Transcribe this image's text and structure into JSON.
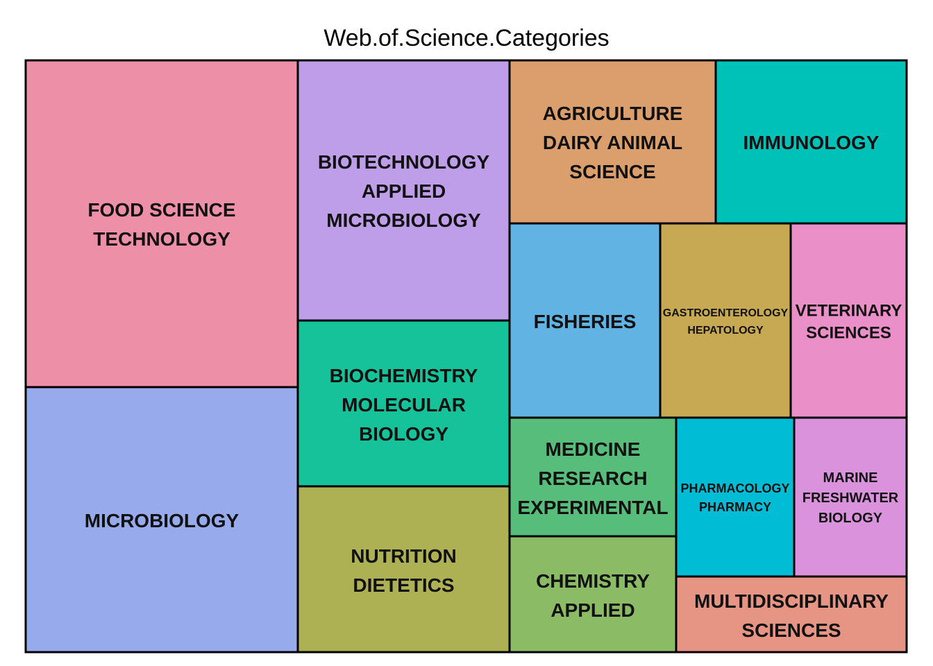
{
  "chart_data": {
    "type": "treemap",
    "title": "Web.of.Science.Categories",
    "items": [
      {
        "lines": [
          "FOOD SCIENCE",
          "TECHNOLOGY"
        ],
        "color": "#ee8fa8"
      },
      {
        "lines": [
          "MICROBIOLOGY"
        ],
        "color": "#97aaec"
      },
      {
        "lines": [
          "BIOTECHNOLOGY",
          "APPLIED",
          "MICROBIOLOGY"
        ],
        "color": "#be9de9"
      },
      {
        "lines": [
          "BIOCHEMISTRY",
          "MOLECULAR",
          "BIOLOGY"
        ],
        "color": "#16c29a"
      },
      {
        "lines": [
          "NUTRITION",
          "DIETETICS"
        ],
        "color": "#adb154"
      },
      {
        "lines": [
          "AGRICULTURE",
          "DAIRY ANIMAL",
          "SCIENCE"
        ],
        "color": "#db9f6d"
      },
      {
        "lines": [
          "IMMUNOLOGY"
        ],
        "color": "#00c1b8"
      },
      {
        "lines": [
          "FISHERIES"
        ],
        "color": "#61b3e3"
      },
      {
        "lines": [
          "GASTROENTEROLOGY",
          "HEPATOLOGY"
        ],
        "color": "#c8a953"
      },
      {
        "lines": [
          "VETERINARY",
          "SCIENCES"
        ],
        "color": "#ea8fc8"
      },
      {
        "lines": [
          "MEDICINE",
          "RESEARCH",
          "EXPERIMENTAL"
        ],
        "color": "#57bd7a"
      },
      {
        "lines": [
          "PHARMACOLOGY",
          "PHARMACY"
        ],
        "color": "#00bcd4"
      },
      {
        "lines": [
          "MARINE",
          "FRESHWATER",
          "BIOLOGY"
        ],
        "color": "#da92dc"
      },
      {
        "lines": [
          "CHEMISTRY",
          "APPLIED"
        ],
        "color": "#8cbb66"
      },
      {
        "lines": [
          "MULTIDISCIPLINARY",
          "SCIENCES"
        ],
        "color": "#e69585"
      }
    ]
  }
}
